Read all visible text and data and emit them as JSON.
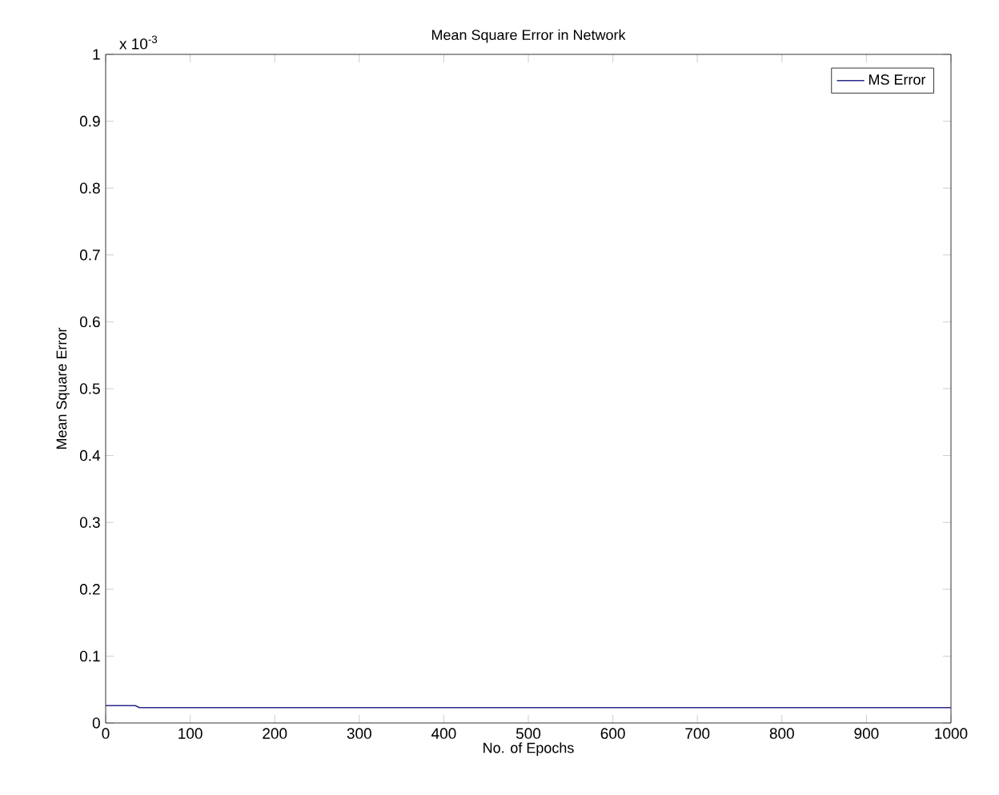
{
  "chart_data": {
    "type": "line",
    "title": "Mean Square Error in Network",
    "xlabel": "No. of Epochs",
    "ylabel": "Mean Square Error",
    "annotations": [
      "x 10$^{-3}$"
    ],
    "x": [
      0,
      35,
      40,
      1000
    ],
    "series": [
      {
        "name": "MS Error",
        "color": "#2a2a8c",
        "values": [
          0.026,
          0.026,
          0.023,
          0.023
        ]
      }
    ],
    "xlim": [
      0,
      1000
    ],
    "ylim": [
      0,
      1
    ],
    "xticks": [
      0,
      100,
      200,
      300,
      400,
      500,
      600,
      700,
      800,
      900,
      1000
    ],
    "yticks": [
      0,
      0.1,
      0.2,
      0.3,
      0.4,
      0.5,
      0.6,
      0.7,
      0.8,
      0.9,
      1
    ],
    "grid": false,
    "legend": "top right",
    "marker": "none",
    "line_style": "solid"
  }
}
